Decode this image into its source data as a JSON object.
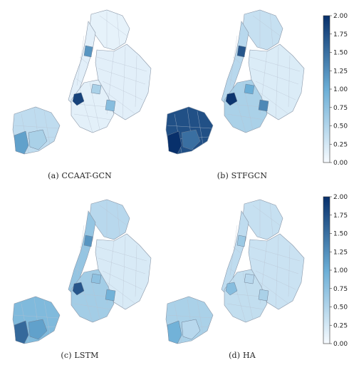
{
  "panels": [
    {
      "caption": "(a) CCAAT-GCN",
      "shades": {
        "staten": 0.4,
        "staten_w": 1.1,
        "staten_s": 0.55,
        "bronx": 0.12,
        "manhattan": 0.15,
        "queens": 0.15,
        "brooklyn": 0.14,
        "hot1": 1.85,
        "hot2": 1.2,
        "hot3": 0.8,
        "hot4": 0.55
      }
    },
    {
      "caption": "(b) STFGCN",
      "shades": {
        "staten": 1.75,
        "staten_w": 2.0,
        "staten_s": 1.5,
        "bronx": 0.35,
        "manhattan": 0.45,
        "queens": 0.2,
        "brooklyn": 0.55,
        "hot1": 1.95,
        "hot2": 1.7,
        "hot3": 1.3,
        "hot4": 1.0
      }
    },
    {
      "caption": "(c) LSTM",
      "shades": {
        "staten": 0.85,
        "staten_w": 1.55,
        "staten_s": 1.1,
        "bronx": 0.45,
        "manhattan": 0.7,
        "queens": 0.22,
        "brooklyn": 0.6,
        "hot1": 1.7,
        "hot2": 1.2,
        "hot3": 0.95,
        "hot4": 0.75
      }
    },
    {
      "caption": "(d) HA",
      "shades": {
        "staten": 0.55,
        "staten_w": 0.95,
        "staten_s": 0.45,
        "bronx": 0.35,
        "manhattan": 0.4,
        "queens": 0.32,
        "brooklyn": 0.38,
        "hot1": 0.8,
        "hot2": 0.65,
        "hot3": 0.55,
        "hot4": 0.45
      }
    }
  ],
  "colorbar": {
    "ticks": [
      "2.00",
      "1.75",
      "1.50",
      "1.25",
      "1.00",
      "0.75",
      "0.50",
      "0.25",
      "0.00"
    ],
    "min": 0,
    "max": 2,
    "color_low": "#f7fbff",
    "color_mid": "#6baed6",
    "color_high": "#08306b"
  }
}
